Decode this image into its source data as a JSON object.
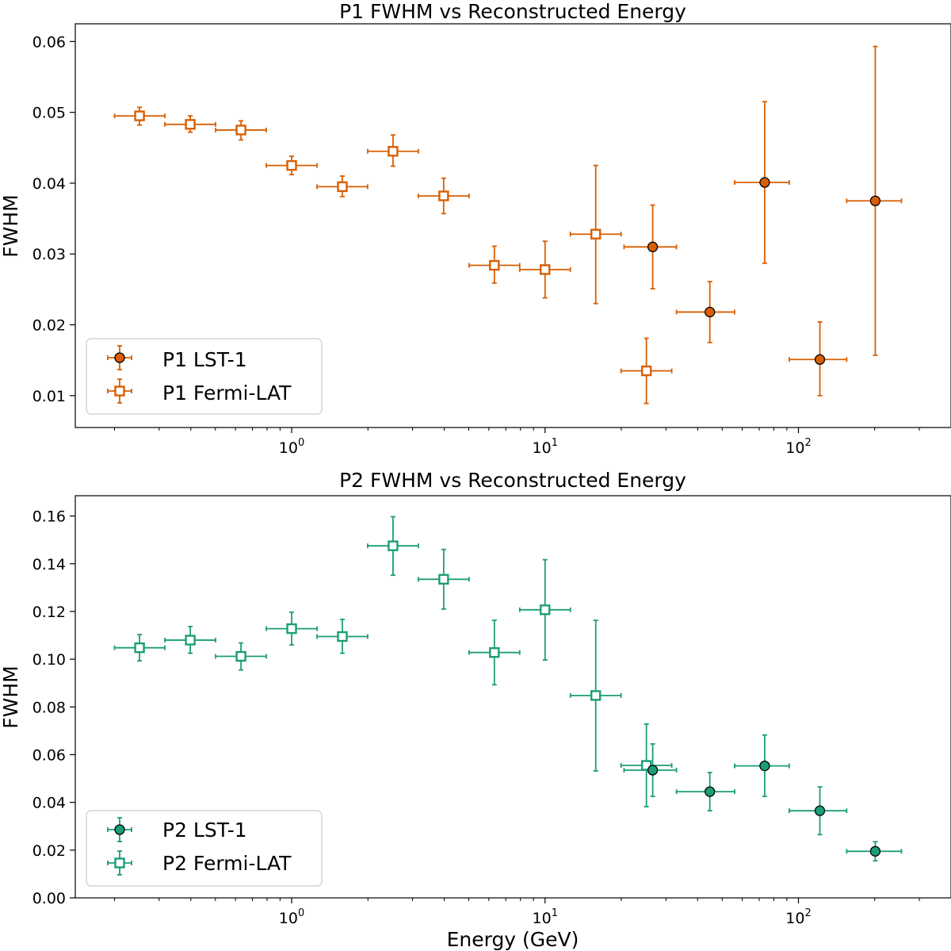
{
  "chart_data": [
    {
      "type": "scatter",
      "title": "P1 FWHM vs Reconstructed Energy",
      "xlabel": "",
      "ylabel": "FWHM",
      "xscale": "log",
      "xlim": [
        0.14,
        400
      ],
      "ylim": [
        0.0055,
        0.0625
      ],
      "ytick_labels": [
        "0.01",
        "0.02",
        "0.03",
        "0.04",
        "0.05",
        "0.06"
      ],
      "xtick_labels": [
        {
          "base": "10",
          "exp": "0"
        },
        {
          "base": "10",
          "exp": "1"
        },
        {
          "base": "10",
          "exp": "2"
        }
      ],
      "legend_position": "lower-left",
      "series": [
        {
          "name": "P1 LST-1",
          "marker": "circle-filled",
          "color": "#d95f02",
          "points": [
            {
              "x": 26.6,
              "y": 0.031,
              "xerr": [
                20.5,
                33.0
              ],
              "yerr": [
                0.0251,
                0.0369
              ]
            },
            {
              "x": 44.7,
              "y": 0.0218,
              "xerr": [
                33.0,
                56.0
              ],
              "yerr": [
                0.0175,
                0.0261
              ]
            },
            {
              "x": 73.6,
              "y": 0.0401,
              "xerr": [
                56.0,
                92.0
              ],
              "yerr": [
                0.0287,
                0.0515
              ]
            },
            {
              "x": 121.5,
              "y": 0.0151,
              "xerr": [
                92.0,
                155.0
              ],
              "yerr": [
                0.01,
                0.0204
              ]
            },
            {
              "x": 201.0,
              "y": 0.0375,
              "xerr": [
                155.0,
                255.0
              ],
              "yerr": [
                0.0157,
                0.0593
              ]
            }
          ]
        },
        {
          "name": "P1 Fermi-LAT",
          "marker": "square-open",
          "color": "#d95f02",
          "points": [
            {
              "x": 0.251,
              "y": 0.0495,
              "xerr": [
                0.2,
                0.316
              ],
              "yerr": [
                0.0482,
                0.0507
              ]
            },
            {
              "x": 0.398,
              "y": 0.0483,
              "xerr": [
                0.316,
                0.501
              ],
              "yerr": [
                0.0472,
                0.0495
              ]
            },
            {
              "x": 0.631,
              "y": 0.0475,
              "xerr": [
                0.501,
                0.794
              ],
              "yerr": [
                0.0461,
                0.0488
              ]
            },
            {
              "x": 1.0,
              "y": 0.0425,
              "xerr": [
                0.794,
                1.259
              ],
              "yerr": [
                0.0412,
                0.0438
              ]
            },
            {
              "x": 1.585,
              "y": 0.0395,
              "xerr": [
                1.259,
                1.995
              ],
              "yerr": [
                0.0381,
                0.041
              ]
            },
            {
              "x": 2.512,
              "y": 0.0445,
              "xerr": [
                1.995,
                3.162
              ],
              "yerr": [
                0.0424,
                0.0468
              ]
            },
            {
              "x": 3.981,
              "y": 0.0382,
              "xerr": [
                3.162,
                5.012
              ],
              "yerr": [
                0.0357,
                0.0407
              ]
            },
            {
              "x": 6.31,
              "y": 0.0284,
              "xerr": [
                5.012,
                7.943
              ],
              "yerr": [
                0.0259,
                0.0311
              ]
            },
            {
              "x": 10.0,
              "y": 0.0278,
              "xerr": [
                7.943,
                12.59
              ],
              "yerr": [
                0.0238,
                0.0318
              ]
            },
            {
              "x": 15.85,
              "y": 0.0328,
              "xerr": [
                12.59,
                19.95
              ],
              "yerr": [
                0.023,
                0.0425
              ]
            },
            {
              "x": 25.12,
              "y": 0.0135,
              "xerr": [
                19.95,
                31.62
              ],
              "yerr": [
                0.0089,
                0.0181
              ]
            }
          ]
        }
      ]
    },
    {
      "type": "scatter",
      "title": "P2 FWHM vs Reconstructed Energy",
      "xlabel": "Energy (GeV)",
      "ylabel": "FWHM",
      "xscale": "log",
      "xlim": [
        0.14,
        400
      ],
      "ylim": [
        0.0,
        0.1685
      ],
      "ytick_labels": [
        "0.00",
        "0.02",
        "0.04",
        "0.06",
        "0.08",
        "0.10",
        "0.12",
        "0.14",
        "0.16"
      ],
      "xtick_labels": [
        {
          "base": "10",
          "exp": "0"
        },
        {
          "base": "10",
          "exp": "1"
        },
        {
          "base": "10",
          "exp": "2"
        }
      ],
      "legend_position": "lower-left",
      "series": [
        {
          "name": "P2 LST-1",
          "marker": "circle-filled",
          "color": "#1b9e77",
          "points": [
            {
              "x": 26.6,
              "y": 0.0535,
              "xerr": [
                20.5,
                33.0
              ],
              "yerr": [
                0.0425,
                0.0645
              ]
            },
            {
              "x": 44.7,
              "y": 0.0445,
              "xerr": [
                33.0,
                56.0
              ],
              "yerr": [
                0.0365,
                0.0525
              ]
            },
            {
              "x": 73.6,
              "y": 0.0553,
              "xerr": [
                56.0,
                92.0
              ],
              "yerr": [
                0.0425,
                0.0682
              ]
            },
            {
              "x": 121.5,
              "y": 0.0365,
              "xerr": [
                92.0,
                155.0
              ],
              "yerr": [
                0.0265,
                0.0465
              ]
            },
            {
              "x": 201.0,
              "y": 0.0195,
              "xerr": [
                155.0,
                255.0
              ],
              "yerr": [
                0.0155,
                0.0235
              ]
            }
          ]
        },
        {
          "name": "P2 Fermi-LAT",
          "marker": "square-open",
          "color": "#1b9e77",
          "points": [
            {
              "x": 0.251,
              "y": 0.1048,
              "xerr": [
                0.2,
                0.316
              ],
              "yerr": [
                0.0993,
                0.1103
              ]
            },
            {
              "x": 0.398,
              "y": 0.108,
              "xerr": [
                0.316,
                0.501
              ],
              "yerr": [
                0.1025,
                0.1137
              ]
            },
            {
              "x": 0.631,
              "y": 0.1012,
              "xerr": [
                0.501,
                0.794
              ],
              "yerr": [
                0.0955,
                0.1068
              ]
            },
            {
              "x": 1.0,
              "y": 0.1128,
              "xerr": [
                0.794,
                1.259
              ],
              "yerr": [
                0.106,
                0.1197
              ]
            },
            {
              "x": 1.585,
              "y": 0.1095,
              "xerr": [
                1.259,
                1.995
              ],
              "yerr": [
                0.1025,
                0.1167
              ]
            },
            {
              "x": 2.512,
              "y": 0.1475,
              "xerr": [
                1.995,
                3.162
              ],
              "yerr": [
                0.1352,
                0.1597
              ]
            },
            {
              "x": 3.981,
              "y": 0.1335,
              "xerr": [
                3.162,
                5.012
              ],
              "yerr": [
                0.121,
                0.146
              ]
            },
            {
              "x": 6.31,
              "y": 0.1028,
              "xerr": [
                5.012,
                7.943
              ],
              "yerr": [
                0.0893,
                0.1163
              ]
            },
            {
              "x": 10.0,
              "y": 0.1207,
              "xerr": [
                7.943,
                12.59
              ],
              "yerr": [
                0.0997,
                0.1417
              ]
            },
            {
              "x": 15.85,
              "y": 0.0848,
              "xerr": [
                12.59,
                19.95
              ],
              "yerr": [
                0.0532,
                0.1163
              ]
            },
            {
              "x": 25.12,
              "y": 0.0555,
              "xerr": [
                19.95,
                31.62
              ],
              "yerr": [
                0.0382,
                0.0728
              ]
            }
          ]
        }
      ]
    }
  ]
}
